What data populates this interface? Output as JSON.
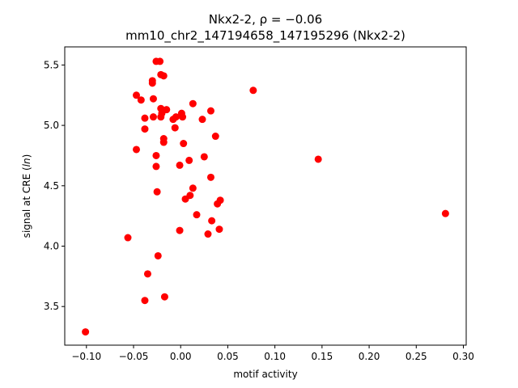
{
  "chart_data": {
    "type": "scatter",
    "title_line1": "Nkx2-2, ρ = −0.06",
    "title_line2": "mm10_chr2_147194658_147195296 (Nkx2-2)",
    "xlabel": "motif activity",
    "ylabel_prefix": "signal at CRE (",
    "ylabel_italic": "ln",
    "ylabel_suffix": ")",
    "xlim": [
      -0.123,
      0.303
    ],
    "ylim": [
      3.18,
      5.65
    ],
    "x_ticks": [
      -0.1,
      -0.05,
      0.0,
      0.05,
      0.1,
      0.15,
      0.2,
      0.25,
      0.3
    ],
    "x_tick_labels": [
      "−0.10",
      "−0.05",
      "0.00",
      "0.05",
      "0.10",
      "0.15",
      "0.20",
      "0.25",
      "0.30"
    ],
    "y_ticks": [
      3.5,
      4.0,
      4.5,
      5.0,
      5.5
    ],
    "y_tick_labels": [
      "3.5",
      "4.0",
      "4.5",
      "5.0",
      "5.5"
    ],
    "marker_color": "#ff0000",
    "grid": false,
    "points": [
      {
        "x": -0.101,
        "y": 3.29
      },
      {
        "x": -0.056,
        "y": 4.07
      },
      {
        "x": -0.047,
        "y": 5.25
      },
      {
        "x": -0.047,
        "y": 4.8
      },
      {
        "x": -0.042,
        "y": 5.21
      },
      {
        "x": -0.038,
        "y": 5.06
      },
      {
        "x": -0.038,
        "y": 4.97
      },
      {
        "x": -0.038,
        "y": 3.55
      },
      {
        "x": -0.035,
        "y": 3.77
      },
      {
        "x": -0.03,
        "y": 5.37
      },
      {
        "x": -0.03,
        "y": 5.35
      },
      {
        "x": -0.029,
        "y": 5.22
      },
      {
        "x": -0.029,
        "y": 5.07
      },
      {
        "x": -0.026,
        "y": 5.53
      },
      {
        "x": -0.026,
        "y": 4.75
      },
      {
        "x": -0.026,
        "y": 4.66
      },
      {
        "x": -0.025,
        "y": 4.45
      },
      {
        "x": -0.024,
        "y": 3.92
      },
      {
        "x": -0.022,
        "y": 5.53
      },
      {
        "x": -0.021,
        "y": 5.42
      },
      {
        "x": -0.021,
        "y": 5.14
      },
      {
        "x": -0.021,
        "y": 5.07
      },
      {
        "x": -0.02,
        "y": 5.1
      },
      {
        "x": -0.018,
        "y": 5.41
      },
      {
        "x": -0.018,
        "y": 4.89
      },
      {
        "x": -0.018,
        "y": 4.86
      },
      {
        "x": -0.017,
        "y": 3.58
      },
      {
        "x": -0.015,
        "y": 5.13
      },
      {
        "x": -0.008,
        "y": 5.05
      },
      {
        "x": -0.006,
        "y": 4.98
      },
      {
        "x": -0.005,
        "y": 5.07
      },
      {
        "x": -0.001,
        "y": 4.67
      },
      {
        "x": -0.001,
        "y": 4.13
      },
      {
        "x": 0.001,
        "y": 5.1
      },
      {
        "x": 0.002,
        "y": 5.07
      },
      {
        "x": 0.003,
        "y": 4.85
      },
      {
        "x": 0.005,
        "y": 4.39
      },
      {
        "x": 0.009,
        "y": 4.71
      },
      {
        "x": 0.01,
        "y": 4.42
      },
      {
        "x": 0.013,
        "y": 5.18
      },
      {
        "x": 0.013,
        "y": 4.48
      },
      {
        "x": 0.017,
        "y": 4.26
      },
      {
        "x": 0.023,
        "y": 5.05
      },
      {
        "x": 0.025,
        "y": 4.74
      },
      {
        "x": 0.029,
        "y": 4.1
      },
      {
        "x": 0.032,
        "y": 5.12
      },
      {
        "x": 0.032,
        "y": 4.57
      },
      {
        "x": 0.033,
        "y": 4.21
      },
      {
        "x": 0.037,
        "y": 4.91
      },
      {
        "x": 0.039,
        "y": 4.35
      },
      {
        "x": 0.041,
        "y": 4.14
      },
      {
        "x": 0.042,
        "y": 4.38
      },
      {
        "x": 0.077,
        "y": 5.29
      },
      {
        "x": 0.146,
        "y": 4.72
      },
      {
        "x": 0.281,
        "y": 4.27
      }
    ]
  }
}
